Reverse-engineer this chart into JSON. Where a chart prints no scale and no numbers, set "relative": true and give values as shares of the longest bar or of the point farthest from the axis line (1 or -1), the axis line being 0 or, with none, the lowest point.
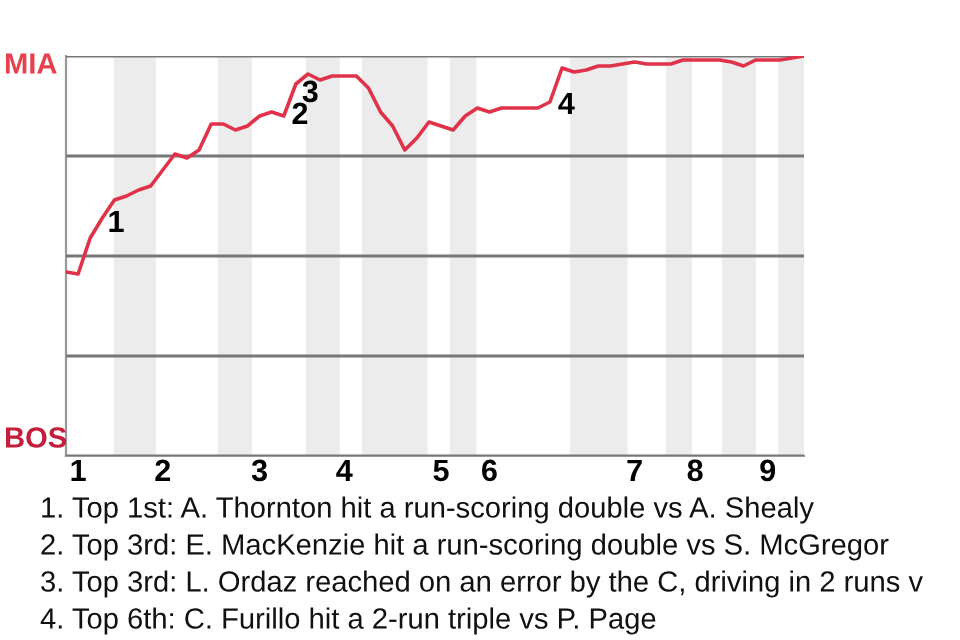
{
  "chart_data": {
    "type": "line",
    "relative": true,
    "categories": [
      null,
      "1",
      null,
      null,
      null,
      null,
      null,
      null,
      "2",
      null,
      null,
      null,
      null,
      null,
      null,
      null,
      "3",
      null,
      null,
      null,
      null,
      null,
      null,
      "4",
      null,
      null,
      null,
      null,
      null,
      null,
      null,
      "5",
      null,
      null,
      null,
      "6",
      null,
      null,
      null,
      null,
      null,
      null,
      null,
      null,
      null,
      null,
      null,
      "7",
      null,
      null,
      null,
      null,
      "8",
      null,
      null,
      null,
      null,
      null,
      "9",
      null,
      null,
      null
    ],
    "series": [
      {
        "color": "#e0334a",
        "values": [
          0.46,
          0.455,
          0.545,
          0.595,
          0.64,
          0.65,
          0.665,
          0.675,
          0.715,
          0.755,
          0.745,
          0.765,
          0.83,
          0.83,
          0.815,
          0.825,
          0.85,
          0.86,
          0.85,
          0.93,
          0.955,
          0.94,
          0.95,
          0.95,
          0.95,
          0.92,
          0.86,
          0.825,
          0.765,
          0.795,
          0.835,
          0.825,
          0.815,
          0.85,
          0.87,
          0.86,
          0.87,
          0.87,
          0.87,
          0.87,
          0.885,
          0.97,
          0.96,
          0.965,
          0.975,
          0.975,
          0.98,
          0.985,
          0.98,
          0.98,
          0.98,
          0.99,
          0.99,
          0.99,
          0.99,
          0.985,
          0.975,
          0.99,
          0.99,
          0.99,
          0.995,
          1.0
        ]
      }
    ],
    "grid": "y",
    "legend": false,
    "marker": "none",
    "line_style": "solid",
    "annotations": [
      "MIA",
      "BOS",
      "1",
      "2",
      "3",
      "4",
      "1. Top 1st: A. Thornton hit a run-scoring double vs A. Shealy",
      "2. Top 3rd: E. MacKenzie hit a run-scoring double vs S. McGregor",
      "3. Top 3rd: L. Ordaz reached on an error by the C, driving in 2 runs v",
      "4. Top 6th: C. Furillo hit a 2-run triple vs P. Page"
    ]
  }
}
